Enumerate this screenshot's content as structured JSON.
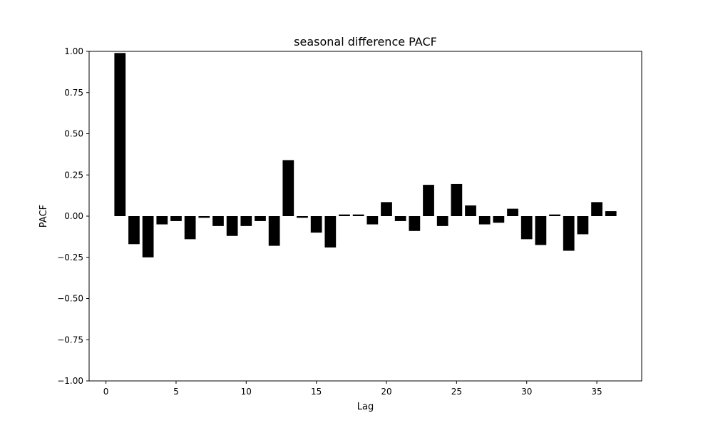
{
  "chart_data": {
    "type": "bar",
    "title": "seasonal difference PACF",
    "xlabel": "Lag",
    "ylabel": "PACF",
    "xlim": [
      -1.2,
      38.2
    ],
    "ylim": [
      -1.0,
      1.0
    ],
    "grid": false,
    "bar_color": "#000000",
    "x_ticks": [
      0,
      5,
      10,
      15,
      20,
      25,
      30,
      35
    ],
    "x_tick_labels": [
      "0",
      "5",
      "10",
      "15",
      "20",
      "25",
      "30",
      "35"
    ],
    "y_ticks": [
      -1.0,
      -0.75,
      -0.5,
      -0.25,
      0.0,
      0.25,
      0.5,
      0.75,
      1.0
    ],
    "y_tick_labels": [
      "−1.00",
      "−0.75",
      "−0.50",
      "−0.25",
      "0.00",
      "0.25",
      "0.50",
      "0.75",
      "1.00"
    ],
    "x": [
      1,
      2,
      3,
      4,
      5,
      6,
      7,
      8,
      9,
      10,
      11,
      12,
      13,
      14,
      15,
      16,
      17,
      18,
      19,
      20,
      21,
      22,
      23,
      24,
      25,
      26,
      27,
      28,
      29,
      30,
      31,
      32,
      33,
      34,
      35,
      36
    ],
    "values": [
      0.99,
      -0.17,
      -0.25,
      -0.05,
      -0.03,
      -0.14,
      -0.01,
      -0.06,
      -0.12,
      -0.06,
      -0.03,
      -0.18,
      0.34,
      -0.01,
      -0.1,
      -0.19,
      0.01,
      0.01,
      -0.05,
      0.085,
      -0.03,
      -0.09,
      0.19,
      -0.06,
      0.195,
      0.065,
      -0.05,
      -0.04,
      0.045,
      -0.14,
      -0.175,
      0.01,
      -0.21,
      -0.11,
      0.085,
      0.03
    ]
  }
}
